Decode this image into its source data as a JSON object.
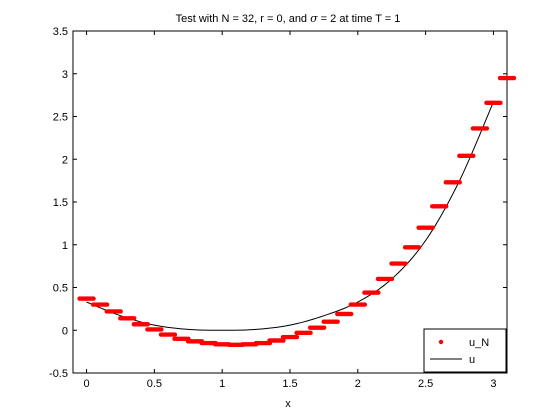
{
  "chart_data": {
    "type": "scatter",
    "title_main": "Test with N = 32, r = 0, and ",
    "title_sigma": "σ",
    "title_rest": " = 2 at time T = 1",
    "xlabel": "x",
    "ylabel": "",
    "xlim": [
      -0.1,
      3.1
    ],
    "ylim": [
      -0.5,
      3.5
    ],
    "xticks": [
      "0",
      "0.5",
      "1",
      "1.5",
      "2",
      "2.5",
      "3"
    ],
    "yticks": [
      "-0.5",
      "0",
      "0.5",
      "1",
      "1.5",
      "2",
      "2.5",
      "3",
      "3.5"
    ],
    "grid": false,
    "legend_position": "bottom-right",
    "colors": {
      "u_N": "#ff0000",
      "u": "#000000",
      "axes": "#000000"
    },
    "series": [
      {
        "name": "u_N",
        "style": "markers",
        "points": [
          [
            0.0,
            0.37
          ],
          [
            0.1,
            0.3
          ],
          [
            0.2,
            0.22
          ],
          [
            0.3,
            0.14
          ],
          [
            0.4,
            0.07
          ],
          [
            0.5,
            0.01
          ],
          [
            0.6,
            -0.05
          ],
          [
            0.7,
            -0.1
          ],
          [
            0.8,
            -0.13
          ],
          [
            0.9,
            -0.15
          ],
          [
            1.0,
            -0.165
          ],
          [
            1.1,
            -0.17
          ],
          [
            1.2,
            -0.165
          ],
          [
            1.3,
            -0.15
          ],
          [
            1.4,
            -0.12
          ],
          [
            1.5,
            -0.08
          ],
          [
            1.6,
            -0.03
          ],
          [
            1.7,
            0.03
          ],
          [
            1.8,
            0.1
          ],
          [
            1.9,
            0.19
          ],
          [
            2.0,
            0.3
          ],
          [
            2.1,
            0.44
          ],
          [
            2.2,
            0.6
          ],
          [
            2.3,
            0.78
          ],
          [
            2.4,
            0.97
          ],
          [
            2.5,
            1.2
          ],
          [
            2.6,
            1.45
          ],
          [
            2.7,
            1.73
          ],
          [
            2.8,
            2.04
          ],
          [
            2.9,
            2.36
          ],
          [
            3.0,
            2.66
          ],
          [
            3.1,
            2.95
          ]
        ]
      },
      {
        "name": "u",
        "style": "line",
        "x0": 0,
        "x1": 3,
        "formula_points": [
          [
            0.0,
            0.33
          ],
          [
            0.25,
            0.17
          ],
          [
            0.5,
            0.06
          ],
          [
            0.75,
            0.01
          ],
          [
            1.0,
            0.0
          ],
          [
            1.25,
            0.01
          ],
          [
            1.5,
            0.06
          ],
          [
            1.75,
            0.17
          ],
          [
            2.0,
            0.33
          ],
          [
            2.25,
            0.6
          ],
          [
            2.5,
            1.05
          ],
          [
            2.75,
            1.75
          ],
          [
            3.0,
            2.67
          ]
        ]
      }
    ]
  }
}
